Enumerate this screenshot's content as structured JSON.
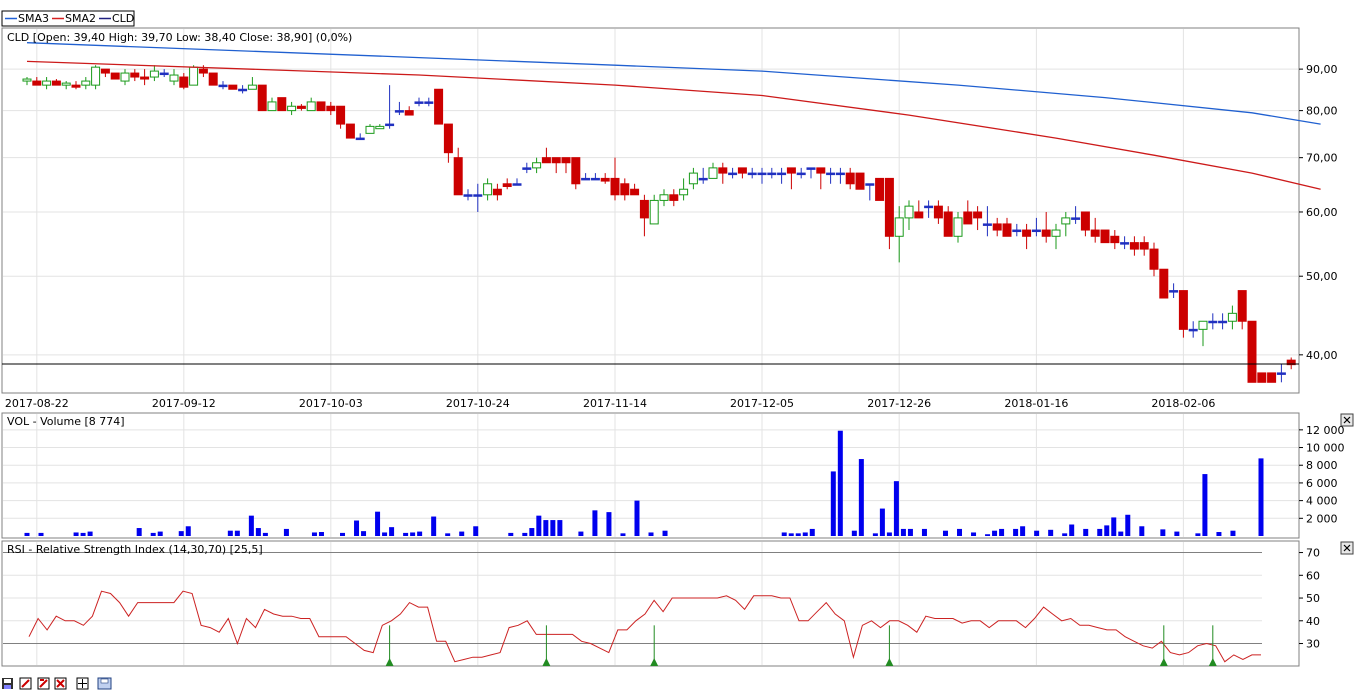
{
  "legend": [
    {
      "name": "SMA3",
      "color": "#1f5fd6"
    },
    {
      "name": "SMA2",
      "color": "#d62020"
    },
    {
      "name": "CLD",
      "color": "#202080"
    }
  ],
  "colors": {
    "up": "#1a9a1a",
    "down": "#cc0000",
    "neutral": "#2030c0",
    "sma2": "#cc1a1a",
    "sma3": "#2060d0",
    "volume": "#0000ee",
    "rsi": "#cc2222",
    "arrow": "#228b22"
  },
  "price_panel": {
    "info": "CLD [Open: 39,40  High: 39,70  Low: 38,40  Close: 38,90] (0,0%)",
    "yticks": [
      "90,00",
      "80,00",
      "70,00",
      "60,00",
      "50,00",
      "40,00"
    ]
  },
  "volume_panel": {
    "title": "VOL - Volume [8 774]",
    "yticks": [
      "12 000",
      "10 000",
      "8 000",
      "6 000",
      "4 000",
      "2 000"
    ],
    "close_icon": "close-icon"
  },
  "rsi_panel": {
    "title": "RSI - Relative Strength Index (14,30,70) [25,5]",
    "yticks": [
      "70",
      "60",
      "50",
      "40",
      "30"
    ],
    "close_icon": "close-icon"
  },
  "toolbar": [
    {
      "name": "save-icon"
    },
    {
      "name": "zoom-out-icon"
    },
    {
      "name": "zoom-in-icon"
    },
    {
      "name": "fit-icon"
    },
    {
      "name": "crosshair-icon"
    },
    {
      "name": "print-icon"
    }
  ],
  "chart_data": [
    {
      "type": "candlestick",
      "title": "CLD",
      "scale": "log",
      "ylim": [
        36.2,
        100
      ],
      "x_ticks": [
        "2017-08-22",
        "2017-09-12",
        "2017-10-03",
        "2017-10-24",
        "2017-11-14",
        "2017-12-05",
        "2017-12-26",
        "2018-01-16",
        "2018-02-06"
      ],
      "x_tick_index": [
        1,
        16,
        31,
        46,
        60,
        75,
        89,
        103,
        118
      ],
      "ohlc": [
        [
          87,
          88,
          86,
          87.5
        ],
        [
          87,
          88,
          86,
          86
        ],
        [
          86,
          88,
          85,
          87
        ],
        [
          87,
          87.5,
          86,
          86
        ],
        [
          86,
          87,
          85,
          86.5
        ],
        [
          86,
          87,
          85,
          85.5
        ],
        [
          86,
          88,
          85,
          87
        ],
        [
          86,
          91,
          85,
          90.5
        ],
        [
          90,
          90,
          88,
          89
        ],
        [
          89,
          89,
          87.5,
          87.5
        ],
        [
          87,
          90,
          86,
          89
        ],
        [
          89,
          90,
          87,
          88
        ],
        [
          88,
          90,
          86,
          87.5
        ],
        [
          88,
          91,
          87,
          89.5
        ],
        [
          89,
          90,
          88,
          89
        ],
        [
          87,
          90,
          86,
          88.5
        ],
        [
          88,
          89,
          85,
          85.5
        ],
        [
          86,
          91,
          86,
          90.5
        ],
        [
          90,
          91,
          88,
          89
        ],
        [
          89,
          89,
          86,
          86
        ],
        [
          86,
          87,
          85,
          86
        ],
        [
          86,
          86,
          85,
          85
        ],
        [
          85,
          86,
          84,
          85
        ],
        [
          85,
          88,
          85,
          86
        ],
        [
          86,
          86,
          80,
          80
        ],
        [
          80,
          83,
          80,
          82
        ],
        [
          83,
          83,
          80,
          80
        ],
        [
          80,
          82,
          79,
          81
        ],
        [
          81,
          81.5,
          80,
          80.5
        ],
        [
          80,
          83,
          80,
          82
        ],
        [
          82,
          82,
          80,
          80
        ],
        [
          81,
          82,
          79,
          80
        ],
        [
          81,
          81,
          76,
          77
        ],
        [
          77,
          77,
          74,
          74
        ],
        [
          74,
          75,
          74,
          74
        ],
        [
          75,
          77,
          75,
          76.5
        ],
        [
          76,
          77,
          76,
          76.5
        ],
        [
          77,
          86,
          76,
          77
        ],
        [
          80,
          82,
          79,
          80
        ],
        [
          80,
          81,
          79,
          79
        ],
        [
          82,
          83,
          81,
          82
        ],
        [
          82,
          83,
          81,
          82
        ],
        [
          85,
          85,
          77,
          77
        ],
        [
          77,
          77,
          69,
          71
        ],
        [
          70,
          72,
          63,
          63
        ],
        [
          63,
          64,
          62,
          63
        ],
        [
          63,
          65,
          60,
          63
        ],
        [
          63,
          66,
          62,
          65
        ],
        [
          64,
          65,
          62,
          63
        ],
        [
          65,
          66,
          64,
          64.5
        ],
        [
          65,
          66,
          65,
          65
        ],
        [
          68,
          69,
          67,
          68
        ],
        [
          68,
          70,
          67,
          69
        ],
        [
          70,
          72,
          69,
          69
        ],
        [
          70,
          70,
          67,
          69
        ],
        [
          70,
          70,
          67,
          69
        ],
        [
          70,
          70,
          64,
          65
        ],
        [
          66,
          67,
          66,
          66
        ],
        [
          66,
          67,
          66,
          66
        ],
        [
          66,
          67,
          65,
          65.5
        ],
        [
          66,
          70,
          62,
          63
        ],
        [
          65,
          66,
          62,
          63
        ],
        [
          64,
          65,
          63,
          63
        ],
        [
          62,
          63,
          56,
          59
        ],
        [
          58,
          63,
          58,
          62
        ],
        [
          62,
          64,
          61,
          63
        ],
        [
          63,
          64,
          61,
          62
        ],
        [
          63,
          66,
          62,
          64
        ],
        [
          65,
          68,
          64,
          67
        ],
        [
          66,
          68,
          65,
          66
        ],
        [
          66,
          69,
          66,
          68
        ],
        [
          68,
          69,
          65,
          67
        ],
        [
          67,
          68,
          66,
          67
        ],
        [
          68,
          68,
          66,
          67
        ],
        [
          67,
          68,
          66,
          67
        ],
        [
          67,
          68,
          65,
          67
        ],
        [
          67,
          68,
          66,
          67
        ],
        [
          67,
          68,
          65,
          67
        ],
        [
          68,
          68,
          64,
          67
        ],
        [
          67,
          68,
          66,
          67
        ],
        [
          68,
          68,
          66,
          68
        ],
        [
          68,
          68,
          64,
          67
        ],
        [
          67,
          68,
          65,
          67
        ],
        [
          67,
          68,
          65,
          67
        ],
        [
          67,
          68,
          64,
          65
        ],
        [
          67,
          67,
          64,
          64
        ],
        [
          65,
          65,
          62,
          65
        ],
        [
          66,
          66,
          62,
          62
        ],
        [
          66,
          66,
          54,
          56
        ],
        [
          56,
          61,
          52,
          59
        ],
        [
          59,
          62,
          57,
          61
        ],
        [
          60,
          62,
          59,
          59
        ],
        [
          61,
          62,
          59,
          61
        ],
        [
          61,
          62,
          58,
          59
        ],
        [
          60,
          61,
          56,
          56
        ],
        [
          56,
          60,
          55,
          59
        ],
        [
          60,
          62,
          58,
          58
        ],
        [
          60,
          61,
          57,
          59
        ],
        [
          58,
          61,
          56,
          58
        ],
        [
          58,
          59,
          56,
          57
        ],
        [
          58,
          59,
          56,
          56
        ],
        [
          57,
          58,
          56,
          57
        ],
        [
          57,
          58,
          54,
          56
        ],
        [
          57,
          59,
          56,
          57
        ],
        [
          57,
          60,
          55,
          56
        ],
        [
          56,
          58,
          54,
          57
        ],
        [
          58,
          60,
          56,
          59
        ],
        [
          59,
          61,
          58,
          59
        ],
        [
          60,
          60,
          56,
          57
        ],
        [
          57,
          59,
          55,
          56
        ],
        [
          57,
          57,
          55,
          55
        ],
        [
          56,
          57,
          54,
          55
        ],
        [
          55,
          56,
          54,
          55
        ],
        [
          55,
          56,
          53,
          54
        ],
        [
          55,
          56,
          53,
          54
        ],
        [
          54,
          55,
          50,
          51
        ],
        [
          51,
          51,
          47,
          47
        ],
        [
          48,
          49,
          47,
          48
        ],
        [
          48,
          48,
          42,
          43
        ],
        [
          43,
          44,
          42,
          43
        ],
        [
          43,
          44,
          41,
          44
        ],
        [
          44,
          45,
          43,
          44
        ],
        [
          44,
          45,
          43,
          44
        ],
        [
          44,
          46,
          43,
          45
        ],
        [
          48,
          48,
          43,
          44
        ],
        [
          44,
          44,
          37,
          37
        ],
        [
          38,
          38,
          37,
          37
        ],
        [
          38,
          38,
          37,
          37
        ],
        [
          38,
          39,
          37,
          38
        ],
        [
          39.4,
          39.7,
          38.4,
          38.9
        ]
      ],
      "sma2": [
        [
          0,
          92
        ],
        [
          40,
          88.5
        ],
        [
          60,
          86
        ],
        [
          75,
          83.5
        ],
        [
          90,
          79
        ],
        [
          105,
          74
        ],
        [
          115,
          70.5
        ],
        [
          125,
          67
        ],
        [
          132,
          64
        ]
      ],
      "sma3": [
        [
          0,
          97
        ],
        [
          40,
          93
        ],
        [
          60,
          91
        ],
        [
          75,
          89.5
        ],
        [
          95,
          86
        ],
        [
          110,
          83
        ],
        [
          125,
          79.5
        ],
        [
          132,
          77
        ]
      ]
    },
    {
      "type": "bar",
      "title": "VOL - Volume",
      "ylim": [
        0,
        13000
      ],
      "values": [
        350,
        0,
        350,
        0,
        0,
        0,
        0,
        400,
        350,
        500,
        0,
        0,
        0,
        0,
        0,
        0,
        900,
        0,
        350,
        500,
        0,
        0,
        550,
        1100,
        0,
        0,
        0,
        0,
        0,
        600,
        600,
        0,
        2300,
        900,
        350,
        0,
        0,
        800,
        0,
        0,
        0,
        400,
        450,
        0,
        0,
        350,
        0,
        1750,
        550,
        0,
        2750,
        400,
        1000,
        0,
        350,
        400,
        500,
        0,
        2200,
        0,
        300,
        0,
        500,
        0,
        1100,
        0,
        0,
        0,
        0,
        350,
        0,
        350,
        900,
        2300,
        1800,
        1800,
        1800,
        0,
        0,
        500,
        0,
        2900,
        0,
        2700,
        0,
        300,
        0,
        4000,
        0,
        400,
        0,
        600,
        0,
        0,
        0,
        0,
        0,
        0,
        0,
        0,
        0,
        0,
        0,
        0,
        0,
        0,
        0,
        0,
        400,
        300,
        300,
        400,
        800,
        0,
        0,
        7300,
        11900,
        0,
        600,
        8700,
        0,
        300,
        3100,
        400,
        6200,
        800,
        800,
        0,
        800,
        0,
        0,
        600,
        0,
        800,
        0,
        400,
        0,
        200,
        600,
        800,
        0,
        800,
        1100,
        0,
        600,
        0,
        700,
        0,
        300,
        1300,
        0,
        800,
        0,
        800,
        1200,
        2100,
        500,
        2400,
        0,
        1100,
        0,
        0,
        750,
        0,
        500,
        0,
        0,
        300,
        7000,
        0,
        450,
        0,
        600,
        0,
        0,
        0,
        8774
      ],
      "yticks": [
        2000,
        4000,
        6000,
        8000,
        10000,
        12000
      ]
    },
    {
      "type": "line",
      "title": "RSI - Relative Strength Index (14,30,70) [25,5]",
      "ylim": [
        21,
        72
      ],
      "levels": [
        30,
        70
      ],
      "values": [
        33,
        41,
        36,
        42,
        40,
        40,
        38,
        42,
        53,
        52,
        48,
        42,
        48,
        48,
        48,
        48,
        48,
        53,
        52,
        38,
        37,
        35,
        41,
        30,
        41,
        37,
        45,
        43,
        42,
        42,
        41,
        41,
        33,
        33,
        33,
        33,
        30,
        27,
        26,
        38,
        40,
        43,
        48,
        46,
        46,
        31,
        31,
        22,
        23,
        24,
        24,
        25,
        26,
        37,
        38,
        40,
        34,
        34,
        34,
        34,
        34,
        31,
        30,
        28,
        26,
        36,
        36,
        40,
        43,
        49,
        44,
        50,
        50,
        50,
        50,
        50,
        50,
        51,
        49,
        45,
        51,
        51,
        51,
        50,
        50,
        40,
        40,
        44,
        48,
        43,
        40,
        24,
        38,
        40,
        37,
        40,
        40,
        38,
        35,
        42,
        41,
        41,
        41,
        39,
        40,
        40,
        37,
        40,
        40,
        40,
        37,
        41,
        46,
        43,
        40,
        41,
        38,
        38,
        37,
        36,
        36,
        33,
        31,
        29,
        28,
        31,
        26,
        25,
        26,
        29,
        30,
        29,
        22,
        25,
        23,
        25,
        25
      ],
      "signals": [
        37,
        53,
        64,
        88,
        116,
        121
      ]
    }
  ]
}
